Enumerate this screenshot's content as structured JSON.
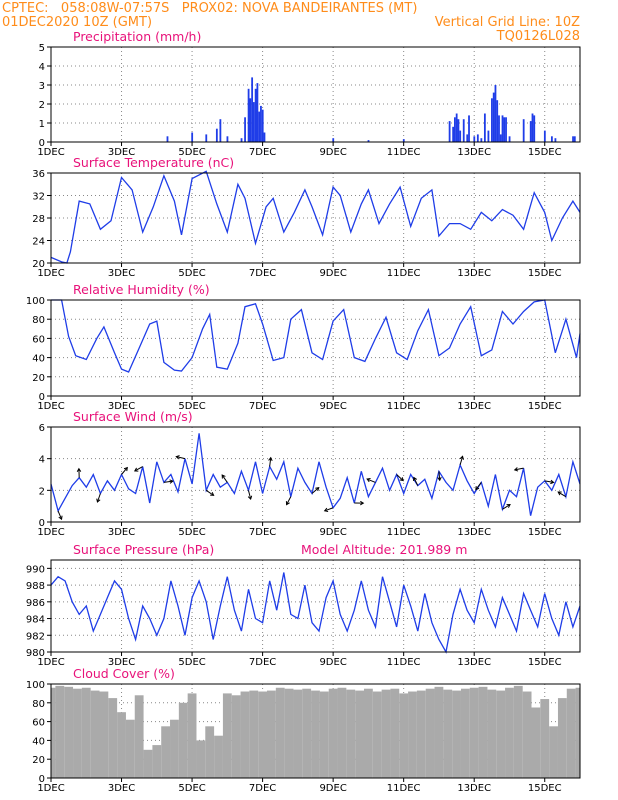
{
  "header": {
    "line1_left": "CPTEC:   058:08W-07:57S   PROX02: NOVA BANDEIRANTES (MT)",
    "line2_left": "01DEC2020 10Z (GMT)",
    "line2_right": "Vertical Grid Line: 10Z",
    "line3_right": "TQ0126L028"
  },
  "x_tick_labels": [
    "1DEC",
    "3DEC",
    "5DEC",
    "7DEC",
    "9DEC",
    "11DEC",
    "13DEC",
    "15DEC"
  ],
  "colors": {
    "header": "#ff8c1a",
    "title": "#e8127a",
    "series": "#1f3de8",
    "cloud": "#aaaaaa",
    "grid": "#888888"
  },
  "chart_data": [
    {
      "type": "bar",
      "title": "Precipitation (mm/h)",
      "ylim": [
        0,
        5
      ],
      "yticks": [
        "0",
        "1",
        "2",
        "3",
        "4",
        "5"
      ],
      "x_range_days": [
        0,
        15
      ],
      "grid": true,
      "x": [
        3.3,
        4.0,
        4.4,
        4.7,
        4.8,
        5.0,
        5.4,
        5.5,
        5.6,
        5.65,
        5.7,
        5.75,
        5.8,
        5.85,
        5.9,
        5.95,
        6.0,
        6.05,
        8.0,
        9.0,
        10.0,
        11.3,
        11.4,
        11.45,
        11.5,
        11.55,
        11.6,
        11.7,
        11.8,
        11.85,
        12.0,
        12.1,
        12.2,
        12.3,
        12.4,
        12.5,
        12.55,
        12.6,
        12.65,
        12.7,
        12.75,
        12.8,
        12.85,
        12.9,
        13.0,
        13.4,
        13.6,
        13.65,
        13.7,
        14.0,
        14.2,
        14.3,
        14.8,
        14.85
      ],
      "values": [
        0.3,
        0.5,
        0.4,
        0.7,
        1.2,
        0.3,
        0.2,
        1.3,
        2.8,
        2.3,
        3.4,
        2.1,
        2.8,
        3.1,
        1.6,
        1.9,
        1.7,
        0.5,
        0.2,
        0.1,
        0.15,
        1.1,
        0.8,
        1.3,
        1.5,
        1.2,
        0.6,
        1.2,
        0.4,
        1.4,
        0.3,
        0.4,
        0.2,
        1.5,
        0.6,
        2.3,
        2.6,
        3.0,
        2.2,
        1.4,
        0.4,
        1.4,
        1.3,
        1.3,
        0.3,
        1.2,
        1.1,
        1.5,
        1.4,
        0.6,
        0.3,
        0.2,
        0.3,
        0.3
      ]
    },
    {
      "type": "line",
      "title": "Surface Temperature (nC)",
      "ylim": [
        20,
        36
      ],
      "yticks": [
        "20",
        "24",
        "28",
        "32",
        "36"
      ],
      "grid": true,
      "x": [
        0,
        0.3,
        0.45,
        0.55,
        0.8,
        1.1,
        1.4,
        1.7,
        2.0,
        2.3,
        2.6,
        2.9,
        3.2,
        3.5,
        3.7,
        4.0,
        4.4,
        4.7,
        5.0,
        5.3,
        5.5,
        5.8,
        6.1,
        6.3,
        6.6,
        6.9,
        7.2,
        7.4,
        7.7,
        8.0,
        8.2,
        8.5,
        8.8,
        9.0,
        9.3,
        9.6,
        9.9,
        10.2,
        10.5,
        10.8,
        11.0,
        11.3,
        11.6,
        11.9,
        12.2,
        12.5,
        12.8,
        13.1,
        13.4,
        13.7,
        14.0,
        14.2,
        14.5,
        14.8,
        15.0
      ],
      "values": [
        21.0,
        20.2,
        20.0,
        22.0,
        31.0,
        30.5,
        26.0,
        27.5,
        35.2,
        33.0,
        25.5,
        30.0,
        35.5,
        31.0,
        25.0,
        35.0,
        36.3,
        30.5,
        25.5,
        34.0,
        31.5,
        23.5,
        30.0,
        31.5,
        25.5,
        29.0,
        33.0,
        30.0,
        25.0,
        33.5,
        32.0,
        25.5,
        30.5,
        33.0,
        27.0,
        30.5,
        33.5,
        26.5,
        31.5,
        33.0,
        24.8,
        27.0,
        27.0,
        26.0,
        29.0,
        27.5,
        29.5,
        28.5,
        26.0,
        32.5,
        29.0,
        24.0,
        28.0,
        31.0,
        29.0
      ]
    },
    {
      "type": "line",
      "title": "Relative Humidity (%)",
      "ylim": [
        0,
        100
      ],
      "yticks": [
        "0",
        "20",
        "40",
        "60",
        "80",
        "100"
      ],
      "grid": true,
      "x": [
        0,
        0.3,
        0.5,
        0.7,
        1.0,
        1.3,
        1.5,
        1.8,
        2.0,
        2.2,
        2.5,
        2.8,
        3.0,
        3.2,
        3.5,
        3.7,
        4.0,
        4.3,
        4.5,
        4.7,
        5.0,
        5.3,
        5.5,
        5.8,
        6.0,
        6.3,
        6.6,
        6.8,
        7.1,
        7.4,
        7.7,
        8.0,
        8.3,
        8.6,
        8.9,
        9.2,
        9.5,
        9.8,
        10.1,
        10.4,
        10.7,
        11.0,
        11.3,
        11.6,
        11.9,
        12.2,
        12.5,
        12.8,
        13.1,
        13.4,
        13.7,
        14.0,
        14.3,
        14.6,
        14.9,
        15.0
      ],
      "values": [
        100,
        100,
        62,
        42,
        38,
        60,
        72,
        45,
        28,
        25,
        50,
        75,
        78,
        35,
        27,
        26,
        40,
        70,
        85,
        30,
        28,
        55,
        93,
        96,
        75,
        37,
        40,
        80,
        90,
        45,
        38,
        78,
        90,
        40,
        36,
        60,
        82,
        45,
        38,
        68,
        90,
        42,
        50,
        75,
        93,
        42,
        48,
        88,
        75,
        88,
        98,
        100,
        45,
        80,
        40,
        65
      ]
    },
    {
      "type": "line",
      "title": "Surface Wind (m/s)",
      "ylim": [
        0,
        6
      ],
      "yticks": [
        "0",
        "2",
        "4",
        "6"
      ],
      "grid": true,
      "x": [
        0,
        0.2,
        0.4,
        0.6,
        0.8,
        1.0,
        1.2,
        1.4,
        1.6,
        1.8,
        2.0,
        2.2,
        2.4,
        2.6,
        2.8,
        3.0,
        3.2,
        3.4,
        3.6,
        3.8,
        4.0,
        4.2,
        4.4,
        4.6,
        4.8,
        5.0,
        5.2,
        5.4,
        5.6,
        5.8,
        6.0,
        6.2,
        6.4,
        6.6,
        6.8,
        7.0,
        7.2,
        7.4,
        7.6,
        7.8,
        8.0,
        8.2,
        8.4,
        8.6,
        8.8,
        9.0,
        9.2,
        9.4,
        9.6,
        9.8,
        10.0,
        10.2,
        10.4,
        10.6,
        10.8,
        11.0,
        11.2,
        11.4,
        11.6,
        11.8,
        12.0,
        12.2,
        12.4,
        12.6,
        12.8,
        13.0,
        13.2,
        13.4,
        13.6,
        13.8,
        14.0,
        14.2,
        14.4,
        14.6,
        14.8,
        15.0
      ],
      "values": [
        2.4,
        0.7,
        1.5,
        2.3,
        2.8,
        2.2,
        3.0,
        1.8,
        2.6,
        2.0,
        3.0,
        2.1,
        1.8,
        3.5,
        1.2,
        3.8,
        2.5,
        3.0,
        1.9,
        4.0,
        2.4,
        5.6,
        2.0,
        3.0,
        2.2,
        2.5,
        1.8,
        3.2,
        2.0,
        3.8,
        1.8,
        3.5,
        2.7,
        3.8,
        1.6,
        3.4,
        2.5,
        1.8,
        3.8,
        2.2,
        0.9,
        1.5,
        2.8,
        1.2,
        3.2,
        1.6,
        2.5,
        3.4,
        2.0,
        3.0,
        1.8,
        3.0,
        2.3,
        2.7,
        1.5,
        3.2,
        2.5,
        2.0,
        3.6,
        2.6,
        1.8,
        2.5,
        1.0,
        3.0,
        0.8,
        2.0,
        1.6,
        3.4,
        0.4,
        2.2,
        2.6,
        2.0,
        3.0,
        1.6,
        3.8,
        2.4
      ]
    },
    {
      "type": "line",
      "title": "Surface Pressure (hPa)",
      "annotation": "Model Altitude: 201.989 m",
      "ylim": [
        980,
        991
      ],
      "yticks": [
        "980",
        "982",
        "984",
        "986",
        "988",
        "990"
      ],
      "grid": true,
      "x": [
        0,
        0.2,
        0.4,
        0.6,
        0.8,
        1.0,
        1.2,
        1.4,
        1.6,
        1.8,
        2.0,
        2.2,
        2.4,
        2.6,
        2.8,
        3.0,
        3.2,
        3.4,
        3.6,
        3.8,
        4.0,
        4.2,
        4.4,
        4.6,
        4.8,
        5.0,
        5.2,
        5.4,
        5.6,
        5.8,
        6.0,
        6.2,
        6.4,
        6.6,
        6.8,
        7.0,
        7.2,
        7.4,
        7.6,
        7.8,
        8.0,
        8.2,
        8.4,
        8.6,
        8.8,
        9.0,
        9.2,
        9.4,
        9.6,
        9.8,
        10.0,
        10.2,
        10.4,
        10.6,
        10.8,
        11.0,
        11.2,
        11.4,
        11.6,
        11.8,
        12.0,
        12.2,
        12.4,
        12.6,
        12.8,
        13.0,
        13.2,
        13.4,
        13.6,
        13.8,
        14.0,
        14.2,
        14.4,
        14.6,
        14.8,
        15.0
      ],
      "values": [
        988.0,
        989.0,
        988.5,
        986.0,
        984.5,
        985.5,
        982.5,
        984.5,
        986.5,
        988.5,
        987.5,
        984.0,
        981.5,
        985.5,
        984.0,
        982.0,
        984.0,
        988.5,
        985.5,
        982.0,
        986.5,
        988.5,
        986.0,
        981.5,
        985.5,
        989.0,
        985.0,
        982.5,
        987.5,
        984.0,
        983.5,
        988.5,
        985.0,
        989.5,
        984.5,
        984.0,
        988.0,
        983.5,
        982.5,
        986.5,
        988.5,
        984.5,
        982.5,
        985.0,
        988.5,
        985.0,
        983.0,
        989.0,
        986.0,
        983.0,
        988.0,
        985.5,
        982.5,
        987.0,
        983.5,
        981.5,
        980.0,
        984.5,
        987.5,
        985.0,
        983.5,
        987.5,
        985.0,
        983.0,
        986.5,
        984.5,
        982.5,
        987.0,
        985.0,
        983.0,
        987.0,
        984.0,
        982.0,
        986.0,
        983.0,
        985.5
      ]
    },
    {
      "type": "bar",
      "title": "Cloud Cover (%)",
      "ylim": [
        0,
        100
      ],
      "yticks": [
        "0",
        "20",
        "40",
        "60",
        "80",
        "100"
      ],
      "grid": true,
      "x": [
        0,
        0.25,
        0.5,
        0.75,
        1.0,
        1.25,
        1.5,
        1.75,
        2.0,
        2.25,
        2.5,
        2.75,
        3.0,
        3.25,
        3.5,
        3.75,
        4.0,
        4.25,
        4.5,
        4.75,
        5.0,
        5.25,
        5.5,
        5.75,
        6.0,
        6.25,
        6.5,
        6.75,
        7.0,
        7.25,
        7.5,
        7.75,
        8.0,
        8.25,
        8.5,
        8.75,
        9.0,
        9.25,
        9.5,
        9.75,
        10.0,
        10.25,
        10.5,
        10.75,
        11.0,
        11.25,
        11.5,
        11.75,
        12.0,
        12.25,
        12.5,
        12.75,
        13.0,
        13.25,
        13.5,
        13.75,
        14.0,
        14.25,
        14.5,
        14.75,
        15.0
      ],
      "values": [
        96,
        98,
        97,
        95,
        96,
        93,
        92,
        85,
        70,
        62,
        88,
        30,
        35,
        55,
        62,
        80,
        90,
        40,
        55,
        45,
        90,
        88,
        92,
        93,
        92,
        93,
        96,
        95,
        94,
        95,
        93,
        92,
        95,
        96,
        94,
        93,
        95,
        92,
        94,
        95,
        90,
        92,
        93,
        95,
        97,
        94,
        93,
        95,
        96,
        97,
        94,
        93,
        96,
        98,
        92,
        75,
        84,
        55,
        85,
        95,
        96
      ]
    }
  ]
}
